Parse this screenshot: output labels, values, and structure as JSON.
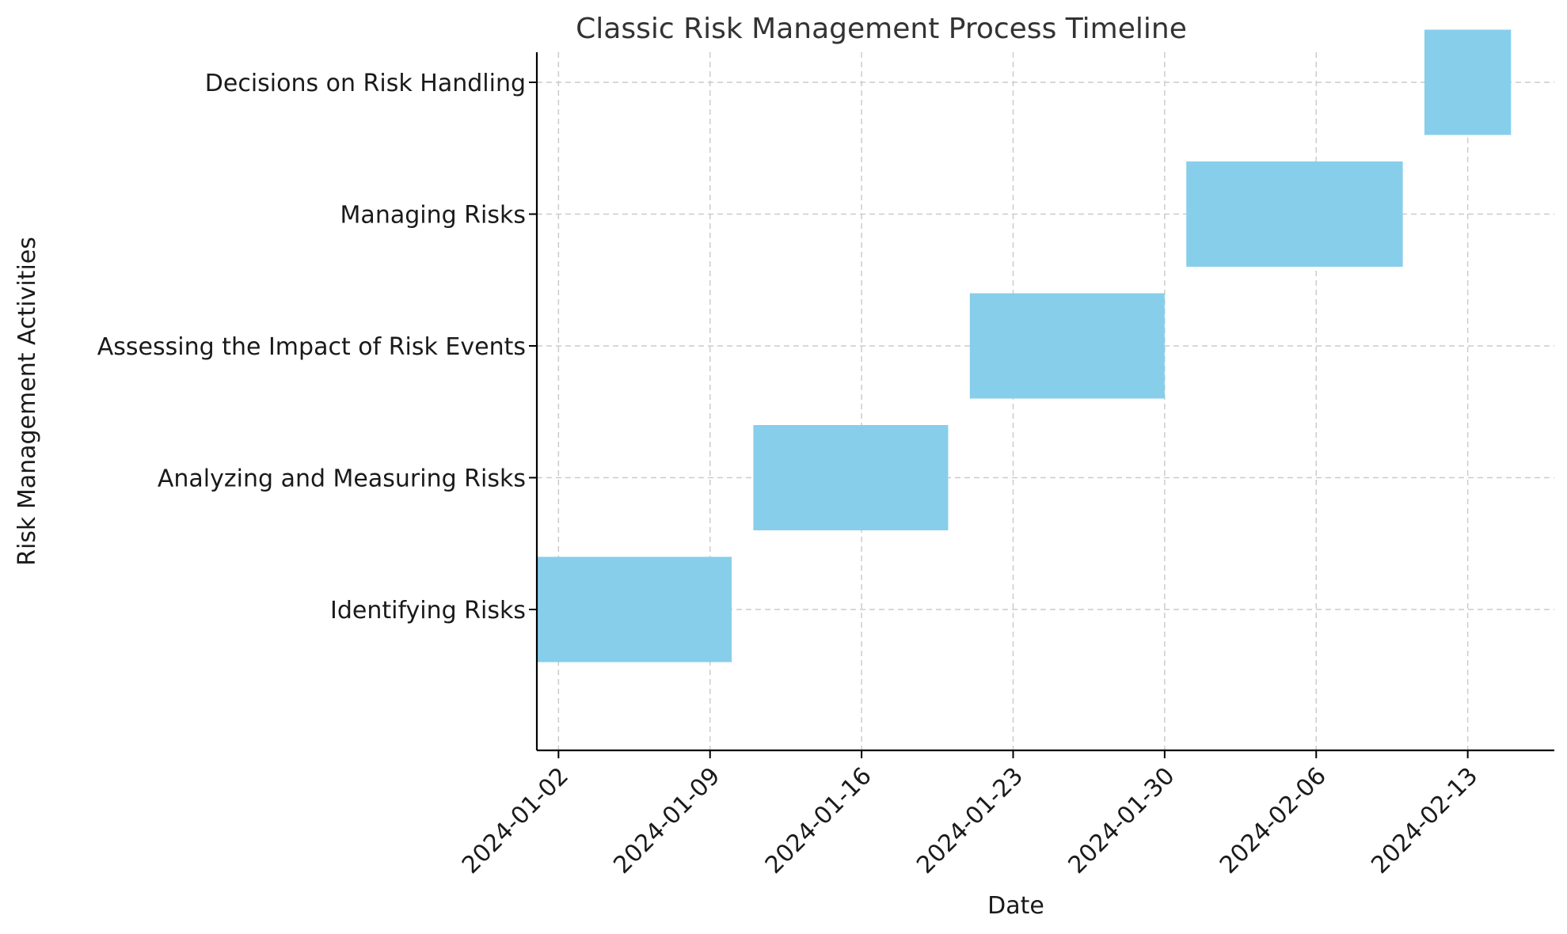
{
  "chart_data": {
    "type": "bar",
    "orientation": "horizontal",
    "title": "Classic Risk Management Process Timeline",
    "xlabel": "Date",
    "ylabel": "Risk Management Activities",
    "xlim": [
      "2024-01-01",
      "2024-02-17"
    ],
    "x_ticks": [
      "2024-01-02",
      "2024-01-09",
      "2024-01-16",
      "2024-01-23",
      "2024-01-30",
      "2024-02-06",
      "2024-02-13"
    ],
    "grid": true,
    "bar_color": "#87CEEB",
    "tasks": [
      {
        "label": "Identifying Risks",
        "start": "2024-01-01",
        "end": "2024-01-10"
      },
      {
        "label": "Analyzing and Measuring Risks",
        "start": "2024-01-11",
        "end": "2024-01-20"
      },
      {
        "label": "Assessing the Impact of Risk Events",
        "start": "2024-01-21",
        "end": "2024-01-30"
      },
      {
        "label": "Managing Risks",
        "start": "2024-01-31",
        "end": "2024-02-10"
      },
      {
        "label": "Decisions on Risk Handling",
        "start": "2024-02-11",
        "end": "2024-02-15"
      }
    ]
  }
}
